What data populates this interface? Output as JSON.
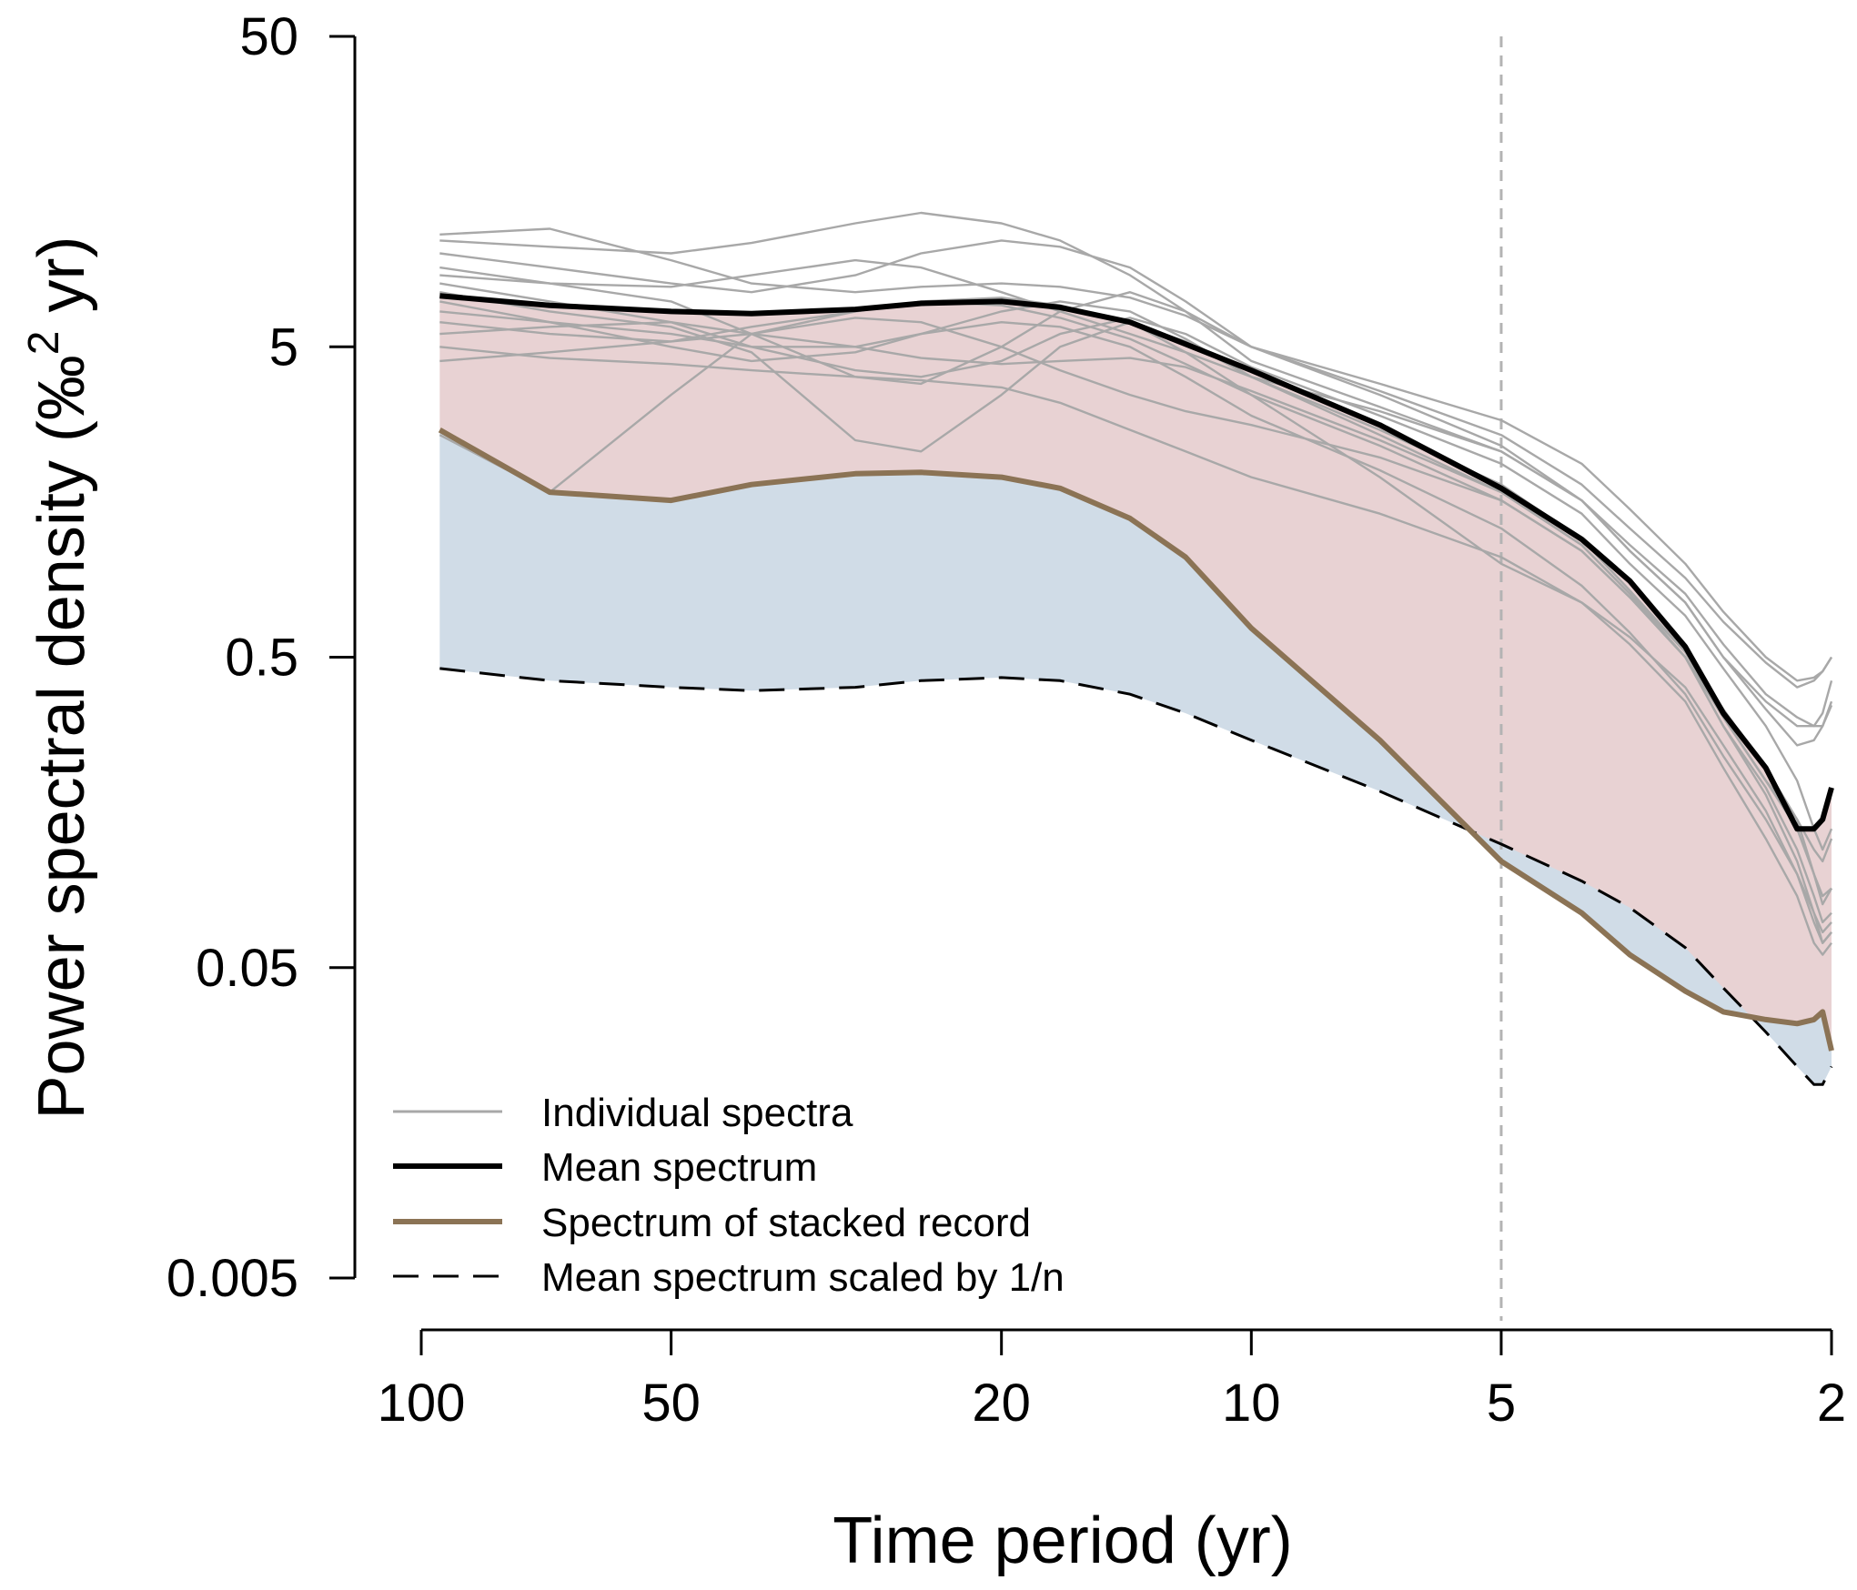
{
  "chart_data": {
    "type": "line",
    "title": "",
    "xlabel": "Time period (yr)",
    "ylabel_parts": [
      "Power spectral density (",
      "‰",
      "2",
      " yr)"
    ],
    "x_scale": "log",
    "x_reversed": true,
    "y_scale": "log",
    "xlim": [
      100,
      2
    ],
    "ylim": [
      0.005,
      50
    ],
    "x_ticks": [
      100,
      50,
      20,
      10,
      5,
      2
    ],
    "x_tick_labels": [
      "100",
      "50",
      "20",
      "10",
      "5",
      "2"
    ],
    "y_ticks": [
      50,
      5,
      0.5,
      0.05,
      0.005
    ],
    "y_tick_labels": [
      "50",
      "5",
      "0.5",
      "0.05",
      "0.005"
    ],
    "reference_line": {
      "x": 5,
      "style": "dashed",
      "color": "#b3b3b3"
    },
    "fill_regions": [
      {
        "name": "between mean and stacked",
        "color": "#e8d2d3"
      },
      {
        "name": "between stacked and scaled",
        "color": "#d0dce7"
      }
    ],
    "colors": {
      "individual": "#a8a8a8",
      "mean": "#000000",
      "stacked": "#8b7355",
      "scaled": "#000000"
    },
    "x": [
      95,
      70,
      50,
      40,
      30,
      25,
      20,
      17,
      14,
      12,
      10,
      7,
      5,
      4,
      3.5,
      3,
      2.7,
      2.4,
      2.2,
      2.1,
      2.05,
      2.0
    ],
    "series": [
      {
        "name": "Mean spectrum",
        "role": "mean",
        "values": [
          7.3,
          6.8,
          6.5,
          6.4,
          6.6,
          6.9,
          7.0,
          6.7,
          6.0,
          5.1,
          4.2,
          2.8,
          1.75,
          1.2,
          0.88,
          0.54,
          0.33,
          0.22,
          0.14,
          0.14,
          0.15,
          0.19
        ]
      },
      {
        "name": "Spectrum of stacked record",
        "role": "stacked",
        "values": [
          2.7,
          1.7,
          1.6,
          1.8,
          1.95,
          1.97,
          1.9,
          1.75,
          1.4,
          1.05,
          0.62,
          0.27,
          0.11,
          0.075,
          0.055,
          0.042,
          0.036,
          0.034,
          0.033,
          0.034,
          0.036,
          0.027
        ]
      },
      {
        "name": "Mean spectrum scaled by 1/n",
        "role": "scaled",
        "values": [
          0.46,
          0.42,
          0.4,
          0.39,
          0.4,
          0.42,
          0.43,
          0.42,
          0.38,
          0.33,
          0.27,
          0.185,
          0.125,
          0.095,
          0.078,
          0.058,
          0.043,
          0.031,
          0.024,
          0.021,
          0.021,
          0.024
        ]
      },
      {
        "name": "Individual spectrum 1",
        "role": "individual",
        "values": [
          11.0,
          10.5,
          10.0,
          10.8,
          12.5,
          13.5,
          12.5,
          11.0,
          8.5,
          6.5,
          4.5,
          3.2,
          2.3,
          1.6,
          1.1,
          0.75,
          0.5,
          0.36,
          0.3,
          0.3,
          0.3,
          0.36
        ]
      },
      {
        "name": "Individual spectrum 2",
        "role": "individual",
        "values": [
          10.0,
          9.0,
          8.0,
          7.5,
          8.5,
          10.0,
          11.0,
          10.5,
          9.0,
          7.0,
          5.0,
          3.6,
          2.6,
          1.8,
          1.3,
          0.9,
          0.65,
          0.48,
          0.4,
          0.42,
          0.45,
          0.5
        ]
      },
      {
        "name": "Individual spectrum 3",
        "role": "individual",
        "values": [
          9.0,
          8.0,
          7.0,
          5.5,
          4.0,
          3.8,
          5.0,
          6.5,
          7.5,
          6.5,
          5.0,
          3.5,
          2.4,
          1.6,
          1.1,
          0.75,
          0.5,
          0.34,
          0.26,
          0.27,
          0.3,
          0.35
        ]
      },
      {
        "name": "Individual spectrum 4",
        "role": "individual",
        "values": [
          8.5,
          8.0,
          7.8,
          8.5,
          9.5,
          9.0,
          7.5,
          6.5,
          5.5,
          4.8,
          4.0,
          3.1,
          2.3,
          1.6,
          1.15,
          0.8,
          0.55,
          0.38,
          0.32,
          0.3,
          0.33,
          0.42
        ]
      },
      {
        "name": "Individual spectrum 5",
        "role": "individual",
        "values": [
          8.0,
          7.0,
          6.0,
          5.0,
          4.2,
          4.0,
          4.5,
          5.5,
          6.2,
          5.5,
          4.3,
          3.0,
          2.1,
          1.45,
          1.0,
          0.68,
          0.46,
          0.3,
          0.2,
          0.14,
          0.12,
          0.14
        ]
      },
      {
        "name": "Individual spectrum 6",
        "role": "individual",
        "values": [
          7.5,
          6.5,
          5.8,
          4.8,
          2.5,
          2.3,
          3.5,
          5.0,
          6.0,
          5.2,
          4.0,
          2.7,
          1.8,
          1.2,
          0.82,
          0.52,
          0.32,
          0.2,
          0.15,
          0.12,
          0.11,
          0.13
        ]
      },
      {
        "name": "Individual spectrum 7",
        "role": "individual",
        "values": [
          7.0,
          6.0,
          5.0,
          4.5,
          4.8,
          5.5,
          6.5,
          7.0,
          6.5,
          5.3,
          4.0,
          2.6,
          1.7,
          1.15,
          0.8,
          0.52,
          0.34,
          0.22,
          0.15,
          0.1,
          0.08,
          0.09
        ]
      },
      {
        "name": "Individual spectrum 8",
        "role": "individual",
        "values": [
          6.5,
          6.0,
          5.5,
          5.0,
          5.0,
          5.5,
          6.0,
          5.8,
          5.0,
          4.0,
          3.0,
          2.0,
          1.3,
          0.85,
          0.6,
          0.38,
          0.24,
          0.15,
          0.1,
          0.075,
          0.065,
          0.07
        ]
      },
      {
        "name": "Individual spectrum 9",
        "role": "individual",
        "values": [
          6.0,
          5.5,
          5.2,
          5.5,
          6.2,
          6.0,
          5.0,
          4.2,
          3.5,
          3.1,
          2.8,
          2.2,
          1.6,
          1.1,
          0.78,
          0.5,
          0.32,
          0.2,
          0.14,
          0.1,
          0.085,
          0.09
        ]
      },
      {
        "name": "Individual spectrum 10",
        "role": "individual",
        "values": [
          5.5,
          5.8,
          6.0,
          5.5,
          5.0,
          4.6,
          4.4,
          4.5,
          4.6,
          4.3,
          3.6,
          2.5,
          1.7,
          1.15,
          0.8,
          0.5,
          0.3,
          0.19,
          0.12,
          0.085,
          0.07,
          0.075
        ]
      },
      {
        "name": "Individual spectrum 11",
        "role": "individual",
        "values": [
          5.0,
          4.6,
          4.4,
          4.2,
          4.0,
          3.9,
          3.7,
          3.3,
          2.7,
          2.3,
          1.9,
          1.45,
          1.05,
          0.75,
          0.55,
          0.36,
          0.22,
          0.13,
          0.085,
          0.06,
          0.055,
          0.06
        ]
      },
      {
        "name": "Individual spectrum 12",
        "role": "individual",
        "values": [
          4.5,
          4.8,
          5.2,
          5.8,
          6.5,
          7.0,
          7.2,
          6.8,
          6.0,
          4.8,
          3.5,
          1.9,
          1.0,
          0.75,
          0.58,
          0.4,
          0.26,
          0.16,
          0.1,
          0.07,
          0.06,
          0.065
        ]
      },
      {
        "name": "Individual spectrum 13",
        "role": "individual",
        "values": [
          2.6,
          1.7,
          3.5,
          5.5,
          6.5,
          7.0,
          6.8,
          6.2,
          5.3,
          4.4,
          3.5,
          2.4,
          1.6,
          1.1,
          0.78,
          0.5,
          0.3,
          0.18,
          0.11,
          0.075,
          0.06,
          0.065
        ]
      },
      {
        "name": "Individual spectrum 14",
        "role": "individual",
        "values": [
          11.5,
          12.0,
          9.5,
          8.0,
          7.5,
          7.8,
          8.0,
          7.8,
          7.2,
          6.3,
          5.0,
          3.8,
          2.9,
          2.1,
          1.5,
          1.0,
          0.7,
          0.5,
          0.42,
          0.43,
          0.45,
          0.5
        ]
      }
    ],
    "legend": {
      "position": "bottom-left",
      "entries": [
        {
          "label": "Individual spectra",
          "style": "thin-gray"
        },
        {
          "label": "Mean spectrum",
          "style": "thick-black"
        },
        {
          "label": "Spectrum of stacked record",
          "style": "thick-brown"
        },
        {
          "label": "Mean spectrum scaled by 1/n",
          "style": "dashed-black"
        }
      ]
    }
  }
}
